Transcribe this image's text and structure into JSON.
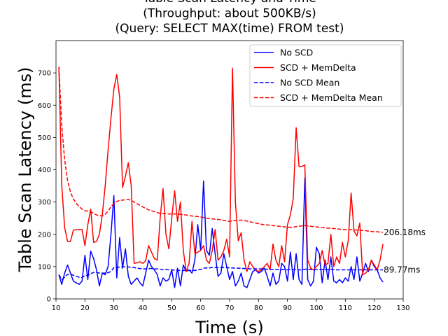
{
  "chart_data": {
    "type": "line",
    "title": [
      "Table Scan Latency and Time",
      "(Throughput: about 500KB/s)",
      "(Query: SELECT MAX(time) FROM test)"
    ],
    "xlabel": "Time (s)",
    "ylabel": "Table Scan Latency (ms)",
    "xlim": [
      10,
      130
    ],
    "xticks": [
      10,
      20,
      30,
      40,
      50,
      60,
      70,
      80,
      90,
      100,
      110,
      120,
      130
    ],
    "ylim": [
      0,
      800
    ],
    "yticks": [
      0,
      100,
      200,
      300,
      400,
      500,
      600,
      700
    ],
    "legend": "upper right",
    "x": [
      11,
      12,
      13,
      14,
      15,
      16,
      17,
      18,
      19,
      20,
      21,
      22,
      23,
      24,
      25,
      26,
      27,
      28,
      29,
      30,
      31,
      32,
      33,
      34,
      35,
      36,
      37,
      38,
      39,
      40,
      41,
      42,
      43,
      44,
      45,
      46,
      47,
      48,
      49,
      50,
      51,
      52,
      53,
      54,
      55,
      56,
      57,
      58,
      59,
      60,
      61,
      62,
      63,
      64,
      65,
      66,
      67,
      68,
      69,
      70,
      71,
      72,
      73,
      74,
      75,
      76,
      77,
      78,
      79,
      80,
      81,
      82,
      83,
      84,
      85,
      86,
      87,
      88,
      89,
      90,
      91,
      92,
      93,
      94,
      95,
      96,
      97,
      98,
      99,
      100,
      101,
      102,
      103,
      104,
      105,
      106,
      107,
      108,
      109,
      110,
      111,
      112,
      113,
      114,
      115,
      116,
      117,
      118,
      119,
      120,
      121,
      122,
      123
    ],
    "series": [
      {
        "name": "No SCD",
        "color": "#0000ff",
        "dashed": false,
        "values": [
          75,
          45,
          80,
          105,
          80,
          55,
          50,
          45,
          55,
          135,
          60,
          148,
          125,
          90,
          40,
          80,
          75,
          100,
          200,
          320,
          65,
          190,
          95,
          155,
          70,
          45,
          55,
          65,
          50,
          40,
          80,
          120,
          100,
          90,
          75,
          40,
          65,
          55,
          60,
          90,
          35,
          95,
          40,
          105,
          85,
          90,
          80,
          120,
          230,
          150,
          365,
          150,
          135,
          218,
          140,
          70,
          80,
          140,
          100,
          60,
          85,
          40,
          55,
          80,
          40,
          35,
          60,
          85,
          90,
          80,
          85,
          95,
          70,
          40,
          80,
          45,
          55,
          110,
          100,
          55,
          145,
          60,
          140,
          60,
          45,
          375,
          60,
          40,
          55,
          160,
          140,
          50,
          120,
          60,
          130,
          55,
          50,
          60,
          50,
          65,
          55,
          100,
          60,
          130,
          55,
          80,
          110,
          85,
          120,
          100,
          90,
          65,
          52
        ]
      },
      {
        "name": "SCD + MemDelta",
        "color": "#ff0000",
        "dashed": false,
        "values": [
          718,
          350,
          220,
          178,
          178,
          213,
          214,
          215,
          215,
          165,
          230,
          278,
          175,
          178,
          200,
          260,
          350,
          460,
          560,
          650,
          695,
          625,
          345,
          380,
          422,
          350,
          110,
          112,
          115,
          110,
          118,
          165,
          145,
          125,
          120,
          250,
          342,
          200,
          155,
          250,
          335,
          240,
          300,
          150,
          85,
          110,
          240,
          140,
          145,
          150,
          165,
          120,
          110,
          150,
          215,
          120,
          130,
          150,
          185,
          130,
          715,
          300,
          180,
          205,
          120,
          85,
          115,
          100,
          90,
          85,
          90,
          100,
          110,
          90,
          170,
          120,
          100,
          165,
          115,
          230,
          260,
          310,
          530,
          410,
          410,
          415,
          120,
          95,
          90,
          100,
          110,
          150,
          105,
          110,
          200,
          100,
          130,
          110,
          175,
          130,
          180,
          328,
          210,
          195,
          235,
          75,
          80,
          90,
          120,
          105,
          90,
          120,
          170
        ]
      },
      {
        "name": "No SCD Mean",
        "color": "#0000ff",
        "dashed": true,
        "end_label": "89.77ms",
        "values": [
          75,
          60,
          67,
          76,
          77,
          73,
          70,
          67,
          66,
          73,
          72,
          78,
          82,
          82,
          80,
          80,
          80,
          81,
          85,
          97,
          96,
          99,
          99,
          100,
          99,
          98,
          97,
          95,
          94,
          93,
          93,
          94,
          94,
          93,
          93,
          92,
          91,
          91,
          90,
          90,
          89,
          89,
          88,
          88,
          88,
          88,
          88,
          88,
          90,
          91,
          95,
          96,
          96,
          97,
          97,
          97,
          97,
          97,
          97,
          96,
          96,
          95,
          95,
          95,
          94,
          94,
          93,
          93,
          93,
          93,
          93,
          92,
          92,
          92,
          91,
          91,
          91,
          91,
          91,
          90,
          91,
          91,
          91,
          90,
          90,
          92,
          92,
          91,
          91,
          91,
          91,
          91,
          91,
          91,
          91,
          91,
          90,
          90,
          90,
          90,
          90,
          90,
          90,
          90,
          90,
          90,
          90,
          90,
          90,
          90,
          90,
          90,
          89.77
        ]
      },
      {
        "name": "SCD + MemDelta Mean",
        "color": "#ff0000",
        "dashed": true,
        "end_label": "206.18ms",
        "values": [
          718,
          534,
          430,
          367,
          330,
          310,
          296,
          286,
          278,
          273,
          272,
          270,
          265,
          260,
          258,
          257,
          262,
          272,
          285,
          295,
          302,
          305,
          306,
          307,
          308,
          305,
          300,
          295,
          290,
          285,
          280,
          276,
          273,
          270,
          267,
          265,
          265,
          264,
          263,
          263,
          263,
          262,
          262,
          261,
          260,
          258,
          257,
          256,
          255,
          254,
          252,
          250,
          249,
          248,
          247,
          246,
          245,
          243,
          242,
          240,
          242,
          243,
          244,
          244,
          243,
          241,
          239,
          237,
          235,
          233,
          231,
          230,
          229,
          228,
          227,
          226,
          225,
          224,
          223,
          222,
          222,
          222,
          224,
          225,
          226,
          227,
          226,
          225,
          224,
          223,
          222,
          221,
          220,
          219,
          219,
          218,
          217,
          216,
          215,
          215,
          214,
          214,
          214,
          213,
          213,
          212,
          211,
          210,
          209,
          208,
          208,
          207,
          206.18
        ]
      }
    ]
  }
}
